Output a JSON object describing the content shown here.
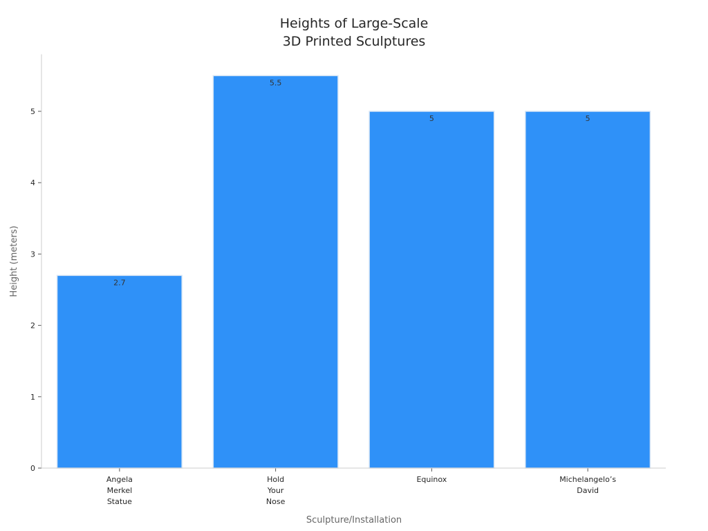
{
  "chart_data": {
    "type": "bar",
    "title": [
      "Heights of Large-Scale",
      "3D Printed Sculptures"
    ],
    "xlabel": "Sculpture/Installation",
    "ylabel": "Height (meters)",
    "categories": [
      [
        "Angela",
        "Merkel",
        "Statue"
      ],
      [
        "Hold",
        "Your",
        "Nose"
      ],
      [
        "Equinox"
      ],
      [
        "Michelangelo’s",
        "David"
      ]
    ],
    "values": [
      2.7,
      5.5,
      5,
      5
    ],
    "data_labels": [
      "2.7",
      "5.5",
      "5",
      "5"
    ],
    "ylim": [
      0,
      5.8
    ],
    "yticks": [
      0,
      1,
      2,
      3,
      4,
      5
    ],
    "grid": false,
    "bar_color": "#2f91f8",
    "bar_edge_color": "#d8e6f5"
  }
}
